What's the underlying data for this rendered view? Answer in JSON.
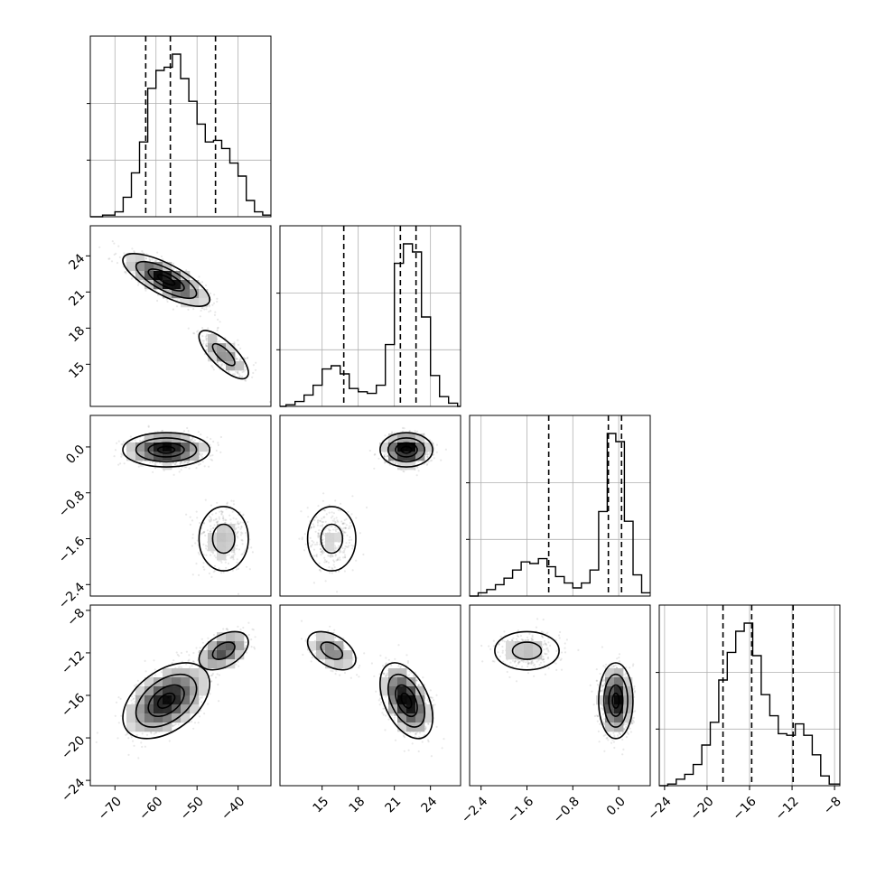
{
  "chart_data": {
    "type": "corner",
    "n_params": 4,
    "grid": true,
    "quantile_lines": "dashed",
    "params": [
      {
        "range": [
          -76,
          -32
        ],
        "ticks": [
          -70,
          -60,
          -50,
          -40
        ],
        "tick_labels": [
          "−70",
          "−60",
          "−50",
          "−40"
        ],
        "quantiles": [
          -62.5,
          -56.5,
          -45.5
        ],
        "hist": [
          {
            "x": -76,
            "h": 0.0
          },
          {
            "x": -73,
            "h": 0.01
          },
          {
            "x": -70,
            "h": 0.03
          },
          {
            "x": -68,
            "h": 0.12
          },
          {
            "x": -66,
            "h": 0.27
          },
          {
            "x": -64,
            "h": 0.46
          },
          {
            "x": -62,
            "h": 0.79
          },
          {
            "x": -60,
            "h": 0.9
          },
          {
            "x": -58,
            "h": 0.92
          },
          {
            "x": -56,
            "h": 1.0
          },
          {
            "x": -54,
            "h": 0.85
          },
          {
            "x": -52,
            "h": 0.71
          },
          {
            "x": -50,
            "h": 0.57
          },
          {
            "x": -48,
            "h": 0.46
          },
          {
            "x": -46,
            "h": 0.47
          },
          {
            "x": -44,
            "h": 0.42
          },
          {
            "x": -42,
            "h": 0.33
          },
          {
            "x": -40,
            "h": 0.25
          },
          {
            "x": -38,
            "h": 0.1
          },
          {
            "x": -36,
            "h": 0.03
          },
          {
            "x": -34,
            "h": 0.01
          }
        ]
      },
      {
        "range": [
          11.5,
          26.5
        ],
        "ticks": [
          15,
          18,
          21,
          24
        ],
        "tick_labels": [
          "15",
          "18",
          "21",
          "24"
        ],
        "quantiles": [
          16.8,
          21.5,
          22.8
        ],
        "hist": [
          {
            "x": 11.5,
            "h": 0.0
          },
          {
            "x": 12.0,
            "h": 0.01
          },
          {
            "x": 12.75,
            "h": 0.03
          },
          {
            "x": 13.5,
            "h": 0.07
          },
          {
            "x": 14.25,
            "h": 0.13
          },
          {
            "x": 15.0,
            "h": 0.23
          },
          {
            "x": 15.75,
            "h": 0.25
          },
          {
            "x": 16.5,
            "h": 0.2
          },
          {
            "x": 17.25,
            "h": 0.11
          },
          {
            "x": 18.0,
            "h": 0.09
          },
          {
            "x": 18.75,
            "h": 0.08
          },
          {
            "x": 19.5,
            "h": 0.13
          },
          {
            "x": 20.25,
            "h": 0.38
          },
          {
            "x": 21.0,
            "h": 0.88
          },
          {
            "x": 21.75,
            "h": 1.0
          },
          {
            "x": 22.5,
            "h": 0.95
          },
          {
            "x": 23.25,
            "h": 0.55
          },
          {
            "x": 24.0,
            "h": 0.19
          },
          {
            "x": 24.75,
            "h": 0.06
          },
          {
            "x": 25.5,
            "h": 0.02
          },
          {
            "x": 26.25,
            "h": 0.0
          }
        ]
      },
      {
        "range": [
          -2.6,
          0.55
        ],
        "ticks": [
          -2.4,
          -1.6,
          -0.8,
          0.0
        ],
        "tick_labels": [
          "−2.4",
          "−1.6",
          "−0.8",
          "0.0"
        ],
        "quantiles": [
          -1.22,
          -0.18,
          0.05
        ],
        "hist": [
          {
            "x": -2.6,
            "h": 0.0
          },
          {
            "x": -2.45,
            "h": 0.02
          },
          {
            "x": -2.3,
            "h": 0.04
          },
          {
            "x": -2.15,
            "h": 0.07
          },
          {
            "x": -2.0,
            "h": 0.11
          },
          {
            "x": -1.85,
            "h": 0.16
          },
          {
            "x": -1.7,
            "h": 0.21
          },
          {
            "x": -1.55,
            "h": 0.2
          },
          {
            "x": -1.4,
            "h": 0.23
          },
          {
            "x": -1.25,
            "h": 0.18
          },
          {
            "x": -1.1,
            "h": 0.12
          },
          {
            "x": -0.95,
            "h": 0.08
          },
          {
            "x": -0.8,
            "h": 0.05
          },
          {
            "x": -0.65,
            "h": 0.08
          },
          {
            "x": -0.5,
            "h": 0.16
          },
          {
            "x": -0.35,
            "h": 0.52
          },
          {
            "x": -0.2,
            "h": 1.0
          },
          {
            "x": -0.05,
            "h": 0.95
          },
          {
            "x": 0.1,
            "h": 0.46
          },
          {
            "x": 0.25,
            "h": 0.13
          },
          {
            "x": 0.4,
            "h": 0.02
          }
        ]
      },
      {
        "range": [
          -24.5,
          -7.5
        ],
        "ticks": [
          -24,
          -20,
          -16,
          -12,
          -8
        ],
        "tick_labels": [
          "−24",
          "−20",
          "−16",
          "−12",
          "−8"
        ],
        "quantiles": [
          -18.5,
          -15.8,
          -11.9
        ],
        "hist": [
          {
            "x": -24.5,
            "h": 0.0
          },
          {
            "x": -23.7,
            "h": 0.01
          },
          {
            "x": -22.9,
            "h": 0.04
          },
          {
            "x": -22.1,
            "h": 0.07
          },
          {
            "x": -21.3,
            "h": 0.13
          },
          {
            "x": -20.5,
            "h": 0.25
          },
          {
            "x": -19.7,
            "h": 0.39
          },
          {
            "x": -18.9,
            "h": 0.65
          },
          {
            "x": -18.1,
            "h": 0.82
          },
          {
            "x": -17.3,
            "h": 0.95
          },
          {
            "x": -16.5,
            "h": 1.0
          },
          {
            "x": -15.7,
            "h": 0.8
          },
          {
            "x": -14.9,
            "h": 0.56
          },
          {
            "x": -14.1,
            "h": 0.43
          },
          {
            "x": -13.3,
            "h": 0.32
          },
          {
            "x": -12.5,
            "h": 0.31
          },
          {
            "x": -11.7,
            "h": 0.38
          },
          {
            "x": -10.9,
            "h": 0.31
          },
          {
            "x": -10.1,
            "h": 0.19
          },
          {
            "x": -9.3,
            "h": 0.06
          },
          {
            "x": -8.5,
            "h": 0.01
          }
        ]
      }
    ],
    "modes": [
      {
        "weight": 0.78,
        "mean": [
          -57.5,
          22.0,
          -0.05,
          -16.5
        ],
        "sd": [
          4.6,
          0.95,
          0.13,
          1.55
        ]
      },
      {
        "weight": 0.22,
        "mean": [
          -43.5,
          15.8,
          -1.6,
          -11.8
        ],
        "sd": [
          3.0,
          1.0,
          0.28,
          0.9
        ]
      }
    ],
    "pair_corr": {
      "0-1": -0.75,
      "0-3": 0.45,
      "1-3": -0.45
    }
  }
}
